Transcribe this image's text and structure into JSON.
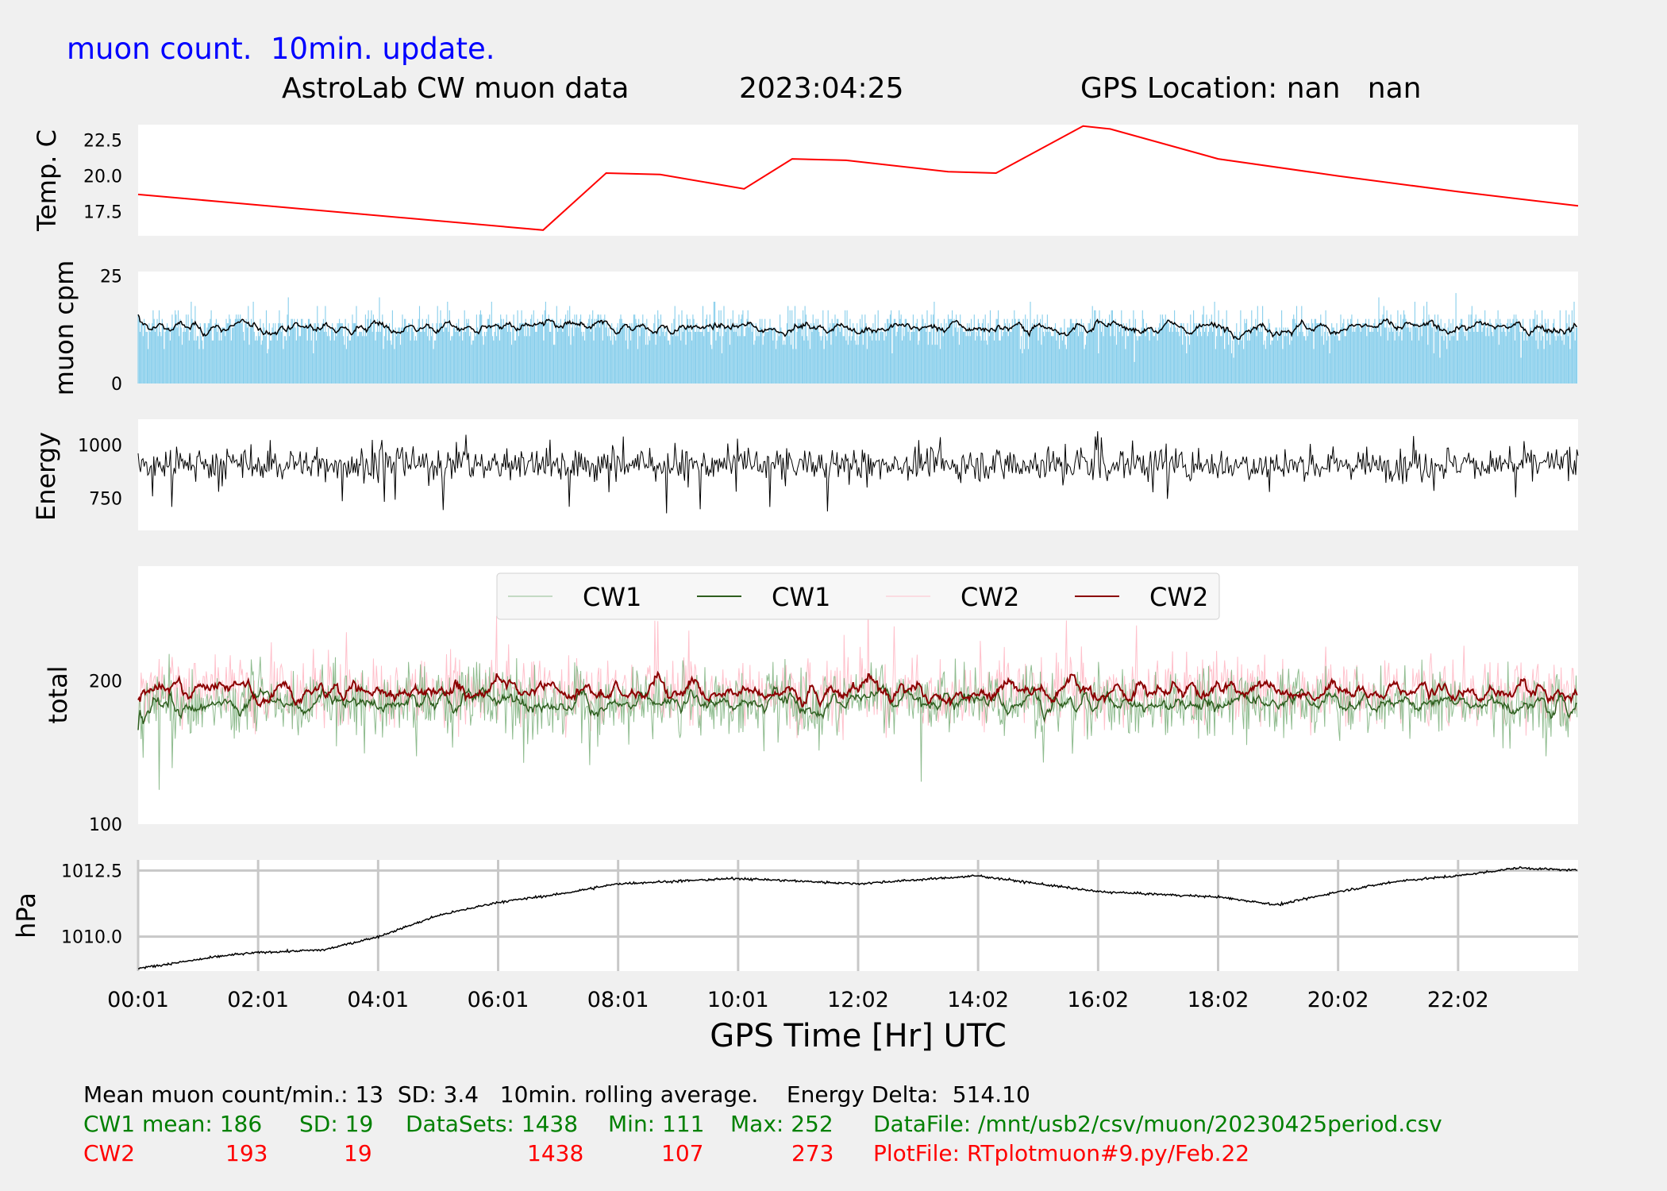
{
  "header": {
    "subtitle": "muon count.  10min. update.",
    "title_left": "AstroLab CW muon data",
    "title_date": "2023:04:25",
    "title_gps": "GPS Location: nan   nan"
  },
  "colors": {
    "background": "#f0f0f0",
    "panel": "#ffffff",
    "temp_line": "#ff0000",
    "muon_bars": "#87ceeb",
    "rolling": "#000000",
    "energy_line": "#000000",
    "cw1_raw": "#8fbc8f",
    "cw1_avg": "#2e5e1e",
    "cw2_raw": "#ffc0cb",
    "cw2_avg": "#8b0000",
    "pressure_line": "#000000",
    "grid": "#c8c8c8"
  },
  "chart_data": [
    {
      "type": "line",
      "name": "temperature",
      "ylabel": "Temp. C",
      "yticks": [
        17.5,
        20.0,
        22.5
      ],
      "ylim": [
        15.8,
        23.6
      ],
      "xlim": [
        0,
        24
      ],
      "x": [
        0,
        6.75,
        7.8,
        8.7,
        10.1,
        10.9,
        11.8,
        13.5,
        14.3,
        15.75,
        16.2,
        18,
        20,
        22,
        24
      ],
      "y": [
        18.7,
        16.2,
        20.2,
        20.1,
        19.1,
        21.2,
        21.1,
        20.3,
        20.2,
        23.5,
        23.3,
        21.2,
        20.0,
        18.9,
        17.9
      ]
    },
    {
      "type": "bar",
      "name": "muon-cpm",
      "ylabel": "muon cpm",
      "yticks": [
        0,
        25
      ],
      "ylim": [
        0,
        26
      ],
      "xlim": [
        0,
        24
      ],
      "mean": 13,
      "sd": 3.4,
      "rolling_window_minutes": 10
    },
    {
      "type": "line",
      "name": "energy",
      "ylabel": "Energy",
      "yticks": [
        750,
        1000
      ],
      "ylim": [
        600,
        1120
      ],
      "xlim": [
        0,
        24
      ],
      "center": 910,
      "spread": 55
    },
    {
      "type": "line",
      "name": "total",
      "ylabel": "total",
      "yticks": [
        100,
        200
      ],
      "ylim": [
        100,
        280
      ],
      "xlim": [
        0,
        24
      ],
      "legend": [
        "CW1",
        "CW1",
        "CW2",
        "CW2"
      ],
      "legend_position": "top-center",
      "series": [
        {
          "name": "CW1",
          "mean": 186,
          "sd": 19,
          "min": 111,
          "max": 252
        },
        {
          "name": "CW2",
          "mean": 193,
          "sd": 19,
          "min": 107,
          "max": 273
        }
      ]
    },
    {
      "type": "line",
      "name": "pressure",
      "ylabel": "hPa",
      "grid": true,
      "yticks": [
        1010.0,
        1012.5
      ],
      "ylim": [
        1008.7,
        1012.9
      ],
      "xlim": [
        0,
        24
      ],
      "x": [
        0,
        1.5,
        2,
        3.1,
        4,
        5,
        6,
        7,
        8,
        10,
        12,
        14,
        16,
        17,
        18,
        19,
        20,
        21,
        22,
        23,
        24
      ],
      "y": [
        1008.8,
        1009.3,
        1009.4,
        1009.5,
        1010.0,
        1010.8,
        1011.3,
        1011.6,
        1012.0,
        1012.2,
        1012.0,
        1012.3,
        1011.7,
        1011.6,
        1011.5,
        1011.2,
        1011.7,
        1012.1,
        1012.3,
        1012.6,
        1012.5
      ]
    }
  ],
  "xaxis": {
    "label": "GPS Time  [Hr] UTC",
    "ticks": [
      {
        "h": 0,
        "label": "00:01"
      },
      {
        "h": 2,
        "label": "02:01"
      },
      {
        "h": 4,
        "label": "04:01"
      },
      {
        "h": 6,
        "label": "06:01"
      },
      {
        "h": 8,
        "label": "08:01"
      },
      {
        "h": 10,
        "label": "10:01"
      },
      {
        "h": 12,
        "label": "12:02"
      },
      {
        "h": 14,
        "label": "14:02"
      },
      {
        "h": 16,
        "label": "16:02"
      },
      {
        "h": 18,
        "label": "18:02"
      },
      {
        "h": 20,
        "label": "20:02"
      },
      {
        "h": 22,
        "label": "22:02"
      }
    ]
  },
  "stats": {
    "line1": "Mean muon count/min.: 13  SD: 3.4   10min. rolling average.    Energy Delta:  514.10",
    "cw1": {
      "mean": "CW1 mean: 186",
      "sd": "SD: 19",
      "datasets": "DataSets: 1438",
      "min": "Min: 111",
      "max": "Max: 252",
      "file": "DataFile: /mnt/usb2/csv/muon/20230425period.csv"
    },
    "cw2": {
      "label": "CW2",
      "mean": "193",
      "sd": "19",
      "datasets": "1438",
      "min": "107",
      "max": "273",
      "file": "PlotFile: RTplotmuon#9.py/Feb.22"
    }
  }
}
